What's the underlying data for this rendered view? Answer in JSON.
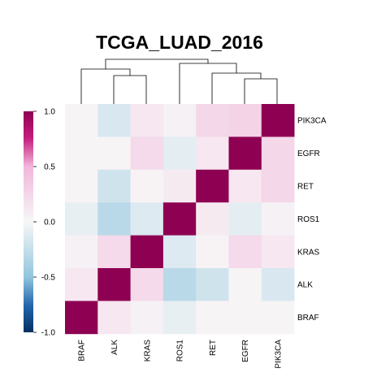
{
  "chart_data": {
    "type": "heatmap",
    "title": "TCGA_LUAD_2016",
    "xlabel": "",
    "ylabel": "",
    "x_labels": [
      "BRAF",
      "ALK",
      "KRAS",
      "ROS1",
      "RET",
      "EGFR",
      "PIK3CA"
    ],
    "y_labels": [
      "PIK3CA",
      "EGFR",
      "RET",
      "ROS1",
      "KRAS",
      "ALK",
      "BRAF"
    ],
    "values": [
      [
        0.02,
        -0.15,
        0.12,
        0.05,
        0.25,
        0.28,
        1.0
      ],
      [
        0.02,
        0.02,
        0.22,
        -0.1,
        0.12,
        1.0,
        0.25
      ],
      [
        0.02,
        -0.2,
        0.03,
        0.1,
        1.0,
        0.12,
        0.25
      ],
      [
        -0.08,
        -0.3,
        -0.13,
        1.0,
        0.1,
        -0.1,
        0.05
      ],
      [
        0.05,
        0.22,
        1.0,
        -0.13,
        0.03,
        0.22,
        0.12
      ],
      [
        0.12,
        1.0,
        0.22,
        -0.3,
        -0.2,
        0.02,
        -0.15
      ],
      [
        1.0,
        0.12,
        0.05,
        -0.08,
        0.02,
        0.02,
        0.02
      ]
    ],
    "color_scale": {
      "min": -1.0,
      "max": 1.0,
      "low_color": "#053061",
      "mid_color": "#f7f7f7",
      "high_color": "#8e0152",
      "ticks": [
        "1.0",
        "0.5",
        "0.0",
        "-0.5",
        "-1.0"
      ]
    },
    "colorbar_placement": "left",
    "grid": false,
    "dendrogram": "top"
  }
}
